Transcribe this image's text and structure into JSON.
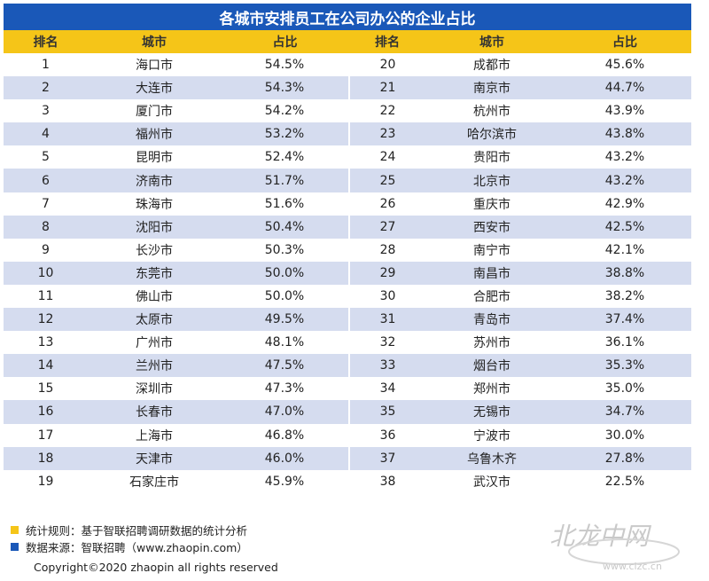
{
  "title": "各城市安排员工在公司办公的企业占比",
  "headers": {
    "rank": "排名",
    "city": "城市",
    "ratio": "占比",
    "rank2": "排名",
    "city2": "城市",
    "ratio2": "占比"
  },
  "colors": {
    "title_bg": "#1a58b8",
    "header_bg": "#f5c518",
    "row_alt_bg": "#d5dcef",
    "legend_rule": "#f5c518",
    "legend_source": "#1a58b8"
  },
  "chart_data": {
    "type": "table",
    "title": "各城市安排员工在公司办公的企业占比",
    "columns": [
      "排名",
      "城市",
      "占比"
    ],
    "rows": [
      {
        "rank": "1",
        "city": "海口市",
        "ratio": "54.5%"
      },
      {
        "rank": "2",
        "city": "大连市",
        "ratio": "54.3%"
      },
      {
        "rank": "3",
        "city": "厦门市",
        "ratio": "54.2%"
      },
      {
        "rank": "4",
        "city": "福州市",
        "ratio": "53.2%"
      },
      {
        "rank": "5",
        "city": "昆明市",
        "ratio": "52.4%"
      },
      {
        "rank": "6",
        "city": "济南市",
        "ratio": "51.7%"
      },
      {
        "rank": "7",
        "city": "珠海市",
        "ratio": "51.6%"
      },
      {
        "rank": "8",
        "city": "沈阳市",
        "ratio": "50.4%"
      },
      {
        "rank": "9",
        "city": "长沙市",
        "ratio": "50.3%"
      },
      {
        "rank": "10",
        "city": "东莞市",
        "ratio": "50.0%"
      },
      {
        "rank": "11",
        "city": "佛山市",
        "ratio": "50.0%"
      },
      {
        "rank": "12",
        "city": "太原市",
        "ratio": "49.5%"
      },
      {
        "rank": "13",
        "city": "广州市",
        "ratio": "48.1%"
      },
      {
        "rank": "14",
        "city": "兰州市",
        "ratio": "47.5%"
      },
      {
        "rank": "15",
        "city": "深圳市",
        "ratio": "47.3%"
      },
      {
        "rank": "16",
        "city": "长春市",
        "ratio": "47.0%"
      },
      {
        "rank": "17",
        "city": "上海市",
        "ratio": "46.8%"
      },
      {
        "rank": "18",
        "city": "天津市",
        "ratio": "46.0%"
      },
      {
        "rank": "19",
        "city": "石家庄市",
        "ratio": "45.9%"
      },
      {
        "rank": "20",
        "city": "成都市",
        "ratio": "45.6%"
      },
      {
        "rank": "21",
        "city": "南京市",
        "ratio": "44.7%"
      },
      {
        "rank": "22",
        "city": "杭州市",
        "ratio": "43.9%"
      },
      {
        "rank": "23",
        "city": "哈尔滨市",
        "ratio": "43.8%"
      },
      {
        "rank": "24",
        "city": "贵阳市",
        "ratio": "43.2%"
      },
      {
        "rank": "25",
        "city": "北京市",
        "ratio": "43.2%"
      },
      {
        "rank": "26",
        "city": "重庆市",
        "ratio": "42.9%"
      },
      {
        "rank": "27",
        "city": "西安市",
        "ratio": "42.5%"
      },
      {
        "rank": "28",
        "city": "南宁市",
        "ratio": "42.1%"
      },
      {
        "rank": "29",
        "city": "南昌市",
        "ratio": "38.8%"
      },
      {
        "rank": "30",
        "city": "合肥市",
        "ratio": "38.2%"
      },
      {
        "rank": "31",
        "city": "青岛市",
        "ratio": "37.4%"
      },
      {
        "rank": "32",
        "city": "苏州市",
        "ratio": "36.1%"
      },
      {
        "rank": "33",
        "city": "烟台市",
        "ratio": "35.3%"
      },
      {
        "rank": "34",
        "city": "郑州市",
        "ratio": "35.0%"
      },
      {
        "rank": "35",
        "city": "无锡市",
        "ratio": "34.7%"
      },
      {
        "rank": "36",
        "city": "宁波市",
        "ratio": "30.0%"
      },
      {
        "rank": "37",
        "city": "乌鲁木齐",
        "ratio": "27.8%"
      },
      {
        "rank": "38",
        "city": "武汉市",
        "ratio": "22.5%"
      }
    ]
  },
  "footer": {
    "rule": "统计规则：基于智联招聘调研数据的统计分析",
    "source": "数据来源：智联招聘（www.zhaopin.com）",
    "copyright": "Copyright©2020 zhaopin all rights reserved"
  },
  "watermark": {
    "brand_text": "北龙中网",
    "site": "www.clzc.cn"
  }
}
